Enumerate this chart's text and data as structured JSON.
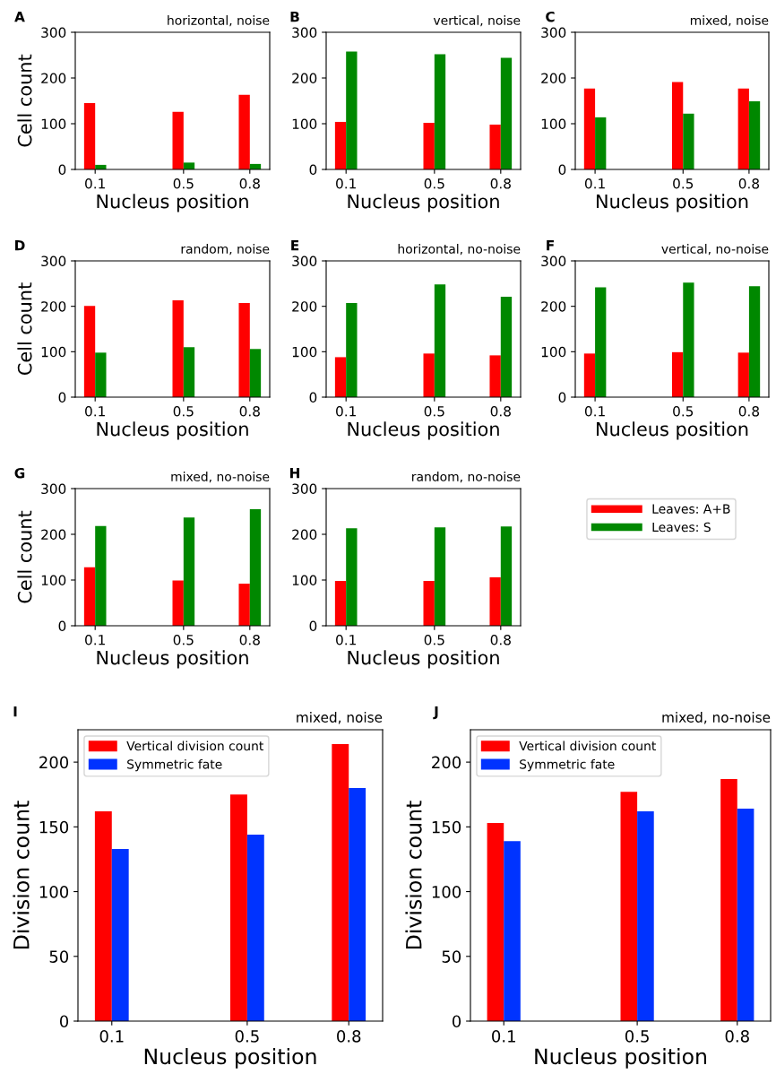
{
  "chart_data": [
    {
      "type": "bar",
      "annotations": [
        "A"
      ],
      "title": "horizontal, noise",
      "xlabel": "Nucleus position",
      "ylabel": "Cell count",
      "x": [
        0.1,
        0.5,
        0.8
      ],
      "xlim": [
        0.01,
        0.89
      ],
      "xticks": [
        0.1,
        0.5,
        0.8
      ],
      "ylim": [
        0,
        300
      ],
      "yticks": [
        0,
        100,
        200,
        300
      ],
      "grid": false,
      "legend": false,
      "series": [
        {
          "color": "#ff0000",
          "values": [
            145,
            126,
            163
          ]
        },
        {
          "color": "#008800",
          "values": [
            10,
            15,
            12
          ]
        }
      ]
    },
    {
      "type": "bar",
      "annotations": [
        "B"
      ],
      "title": "vertical, noise",
      "xlabel": "Nucleus position",
      "x": [
        0.1,
        0.5,
        0.8
      ],
      "xlim": [
        0.01,
        0.89
      ],
      "xticks": [
        0.1,
        0.5,
        0.8
      ],
      "ylim": [
        0,
        300
      ],
      "yticks": [
        0,
        100,
        200,
        300
      ],
      "grid": false,
      "legend": false,
      "series": [
        {
          "color": "#ff0000",
          "values": [
            104,
            102,
            98
          ]
        },
        {
          "color": "#008800",
          "values": [
            258,
            252,
            244
          ]
        }
      ]
    },
    {
      "type": "bar",
      "annotations": [
        "C"
      ],
      "title": "mixed, noise",
      "xlabel": "Nucleus position",
      "x": [
        0.1,
        0.5,
        0.8
      ],
      "xlim": [
        0.01,
        0.89
      ],
      "xticks": [
        0.1,
        0.5,
        0.8
      ],
      "ylim": [
        0,
        300
      ],
      "yticks": [
        0,
        100,
        200,
        300
      ],
      "grid": false,
      "legend": false,
      "series": [
        {
          "color": "#ff0000",
          "values": [
            177,
            191,
            177
          ]
        },
        {
          "color": "#008800",
          "values": [
            114,
            122,
            149
          ]
        }
      ]
    },
    {
      "type": "bar",
      "annotations": [
        "D"
      ],
      "title": "random, noise",
      "xlabel": "Nucleus position",
      "ylabel": "Cell count",
      "x": [
        0.1,
        0.5,
        0.8
      ],
      "xlim": [
        0.01,
        0.89
      ],
      "xticks": [
        0.1,
        0.5,
        0.8
      ],
      "ylim": [
        0,
        300
      ],
      "yticks": [
        0,
        100,
        200,
        300
      ],
      "grid": false,
      "legend": false,
      "series": [
        {
          "color": "#ff0000",
          "values": [
            201,
            213,
            207
          ]
        },
        {
          "color": "#008800",
          "values": [
            98,
            110,
            106
          ]
        }
      ]
    },
    {
      "type": "bar",
      "annotations": [
        "E"
      ],
      "title": "horizontal, no-noise",
      "xlabel": "Nucleus position",
      "x": [
        0.1,
        0.5,
        0.8
      ],
      "xlim": [
        0.01,
        0.89
      ],
      "xticks": [
        0.1,
        0.5,
        0.8
      ],
      "ylim": [
        0,
        300
      ],
      "yticks": [
        0,
        100,
        200,
        300
      ],
      "grid": false,
      "legend": false,
      "series": [
        {
          "color": "#ff0000",
          "values": [
            88,
            96,
            92
          ]
        },
        {
          "color": "#008800",
          "values": [
            207,
            248,
            221
          ]
        }
      ]
    },
    {
      "type": "bar",
      "annotations": [
        "F"
      ],
      "title": "vertical, no-noise",
      "xlabel": "Nucleus position",
      "x": [
        0.1,
        0.5,
        0.8
      ],
      "xlim": [
        0.01,
        0.89
      ],
      "xticks": [
        0.1,
        0.5,
        0.8
      ],
      "ylim": [
        0,
        300
      ],
      "yticks": [
        0,
        100,
        200,
        300
      ],
      "grid": false,
      "legend": false,
      "series": [
        {
          "color": "#ff0000",
          "values": [
            96,
            99,
            98
          ]
        },
        {
          "color": "#008800",
          "values": [
            242,
            252,
            244
          ]
        }
      ]
    },
    {
      "type": "bar",
      "annotations": [
        "G"
      ],
      "title": "mixed, no-noise",
      "xlabel": "Nucleus position",
      "ylabel": "Cell count",
      "x": [
        0.1,
        0.5,
        0.8
      ],
      "xlim": [
        0.01,
        0.89
      ],
      "xticks": [
        0.1,
        0.5,
        0.8
      ],
      "ylim": [
        0,
        300
      ],
      "yticks": [
        0,
        100,
        200,
        300
      ],
      "grid": false,
      "legend": false,
      "series": [
        {
          "color": "#ff0000",
          "values": [
            128,
            99,
            92
          ]
        },
        {
          "color": "#008800",
          "values": [
            218,
            237,
            255
          ]
        }
      ]
    },
    {
      "type": "bar",
      "annotations": [
        "H"
      ],
      "title": "random, no-noise",
      "xlabel": "Nucleus position",
      "x": [
        0.1,
        0.5,
        0.8
      ],
      "xlim": [
        0.01,
        0.89
      ],
      "xticks": [
        0.1,
        0.5,
        0.8
      ],
      "ylim": [
        0,
        300
      ],
      "yticks": [
        0,
        100,
        200,
        300
      ],
      "grid": false,
      "legend": "right",
      "series": [
        {
          "name": "Leaves: A+B",
          "color": "#ff0000",
          "values": [
            98,
            98,
            106
          ]
        },
        {
          "name": "Leaves: S",
          "color": "#008800",
          "values": [
            213,
            215,
            217
          ]
        }
      ]
    },
    {
      "type": "bar",
      "annotations": [
        "I"
      ],
      "title": "mixed, noise",
      "xlabel": "Nucleus position",
      "ylabel": "Division count",
      "x": [
        0.1,
        0.5,
        0.8
      ],
      "xlim": [
        0.0,
        0.9
      ],
      "xticks": [
        0.1,
        0.5,
        0.8
      ],
      "ylim": [
        0,
        225
      ],
      "yticks": [
        0,
        50,
        100,
        150,
        200
      ],
      "grid": false,
      "legend": "top left",
      "series": [
        {
          "name": "Vertical division count",
          "color": "#ff0000",
          "values": [
            162,
            175,
            214
          ]
        },
        {
          "name": "Symmetric fate",
          "color": "#0033ff",
          "values": [
            133,
            144,
            180
          ]
        }
      ]
    },
    {
      "type": "bar",
      "annotations": [
        "J"
      ],
      "title": "mixed, no-noise",
      "xlabel": "Nucleus position",
      "ylabel": "Division count",
      "x": [
        0.1,
        0.5,
        0.8
      ],
      "xlim": [
        0.0,
        0.9
      ],
      "xticks": [
        0.1,
        0.5,
        0.8
      ],
      "ylim": [
        0,
        225
      ],
      "yticks": [
        0,
        50,
        100,
        150,
        200
      ],
      "grid": false,
      "legend": "top left",
      "series": [
        {
          "name": "Vertical division count",
          "color": "#ff0000",
          "values": [
            153,
            177,
            187
          ]
        },
        {
          "name": "Symmetric fate",
          "color": "#0033ff",
          "values": [
            139,
            162,
            164
          ]
        }
      ]
    }
  ]
}
